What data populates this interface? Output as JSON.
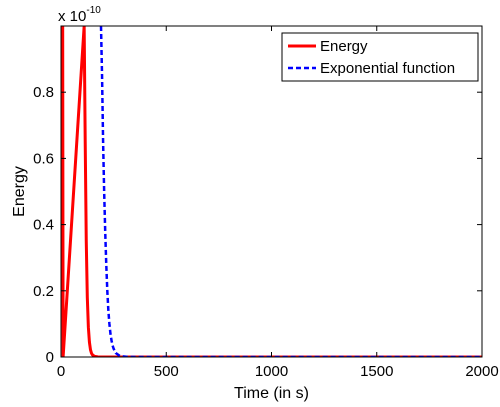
{
  "chart_data": {
    "type": "line",
    "title": "",
    "xlabel": "Time (in s)",
    "ylabel": "Energy",
    "xlim": [
      0,
      2000
    ],
    "ylim": [
      0,
      1e-10
    ],
    "x_ticks": [
      0,
      500,
      1000,
      1500,
      2000
    ],
    "x_tick_labels": [
      "0",
      "500",
      "1000",
      "1500",
      "2000"
    ],
    "y_ticks": [
      0,
      2e-11,
      4e-11,
      6e-11,
      8e-11
    ],
    "y_tick_labels": [
      "0",
      "0.2",
      "0.4",
      "0.6",
      "0.8"
    ],
    "y_multiplier_base": "x 10",
    "y_multiplier_exp": "-10",
    "grid": false,
    "legend_position": "top-right",
    "series": [
      {
        "name": "Energy",
        "color": "#ff0000",
        "style": "solid",
        "x": [
          0,
          2,
          4,
          6,
          8,
          10,
          110,
          115,
          120,
          125,
          130,
          135,
          140,
          145,
          150,
          160,
          175,
          200,
          300,
          500,
          1000,
          1500,
          2000
        ],
        "y": [
          1e-10,
          1e-10,
          1e-10,
          1e-10,
          1e-10,
          0,
          1e-10,
          6.5e-11,
          3.5e-11,
          1.8e-11,
          9e-12,
          4.5e-12,
          2.2e-12,
          1.1e-12,
          6e-13,
          2e-13,
          5e-14,
          1e-14,
          0,
          0,
          0,
          0,
          0
        ]
      },
      {
        "name": "Exponential function",
        "color": "#0000ff",
        "style": "dashed",
        "x": [
          190,
          195,
          200,
          205,
          210,
          215,
          220,
          225,
          230,
          235,
          240,
          245,
          250,
          260,
          280,
          320,
          500,
          1000,
          1500,
          2000
        ],
        "y": [
          1e-10,
          8.5e-11,
          6.5e-11,
          5e-11,
          3.8e-11,
          2.8e-11,
          2e-11,
          1.4e-11,
          1e-11,
          7e-12,
          5e-12,
          3.5e-12,
          2.5e-12,
          1.2e-12,
          3e-13,
          2e-14,
          0,
          0,
          0,
          0
        ]
      }
    ]
  }
}
